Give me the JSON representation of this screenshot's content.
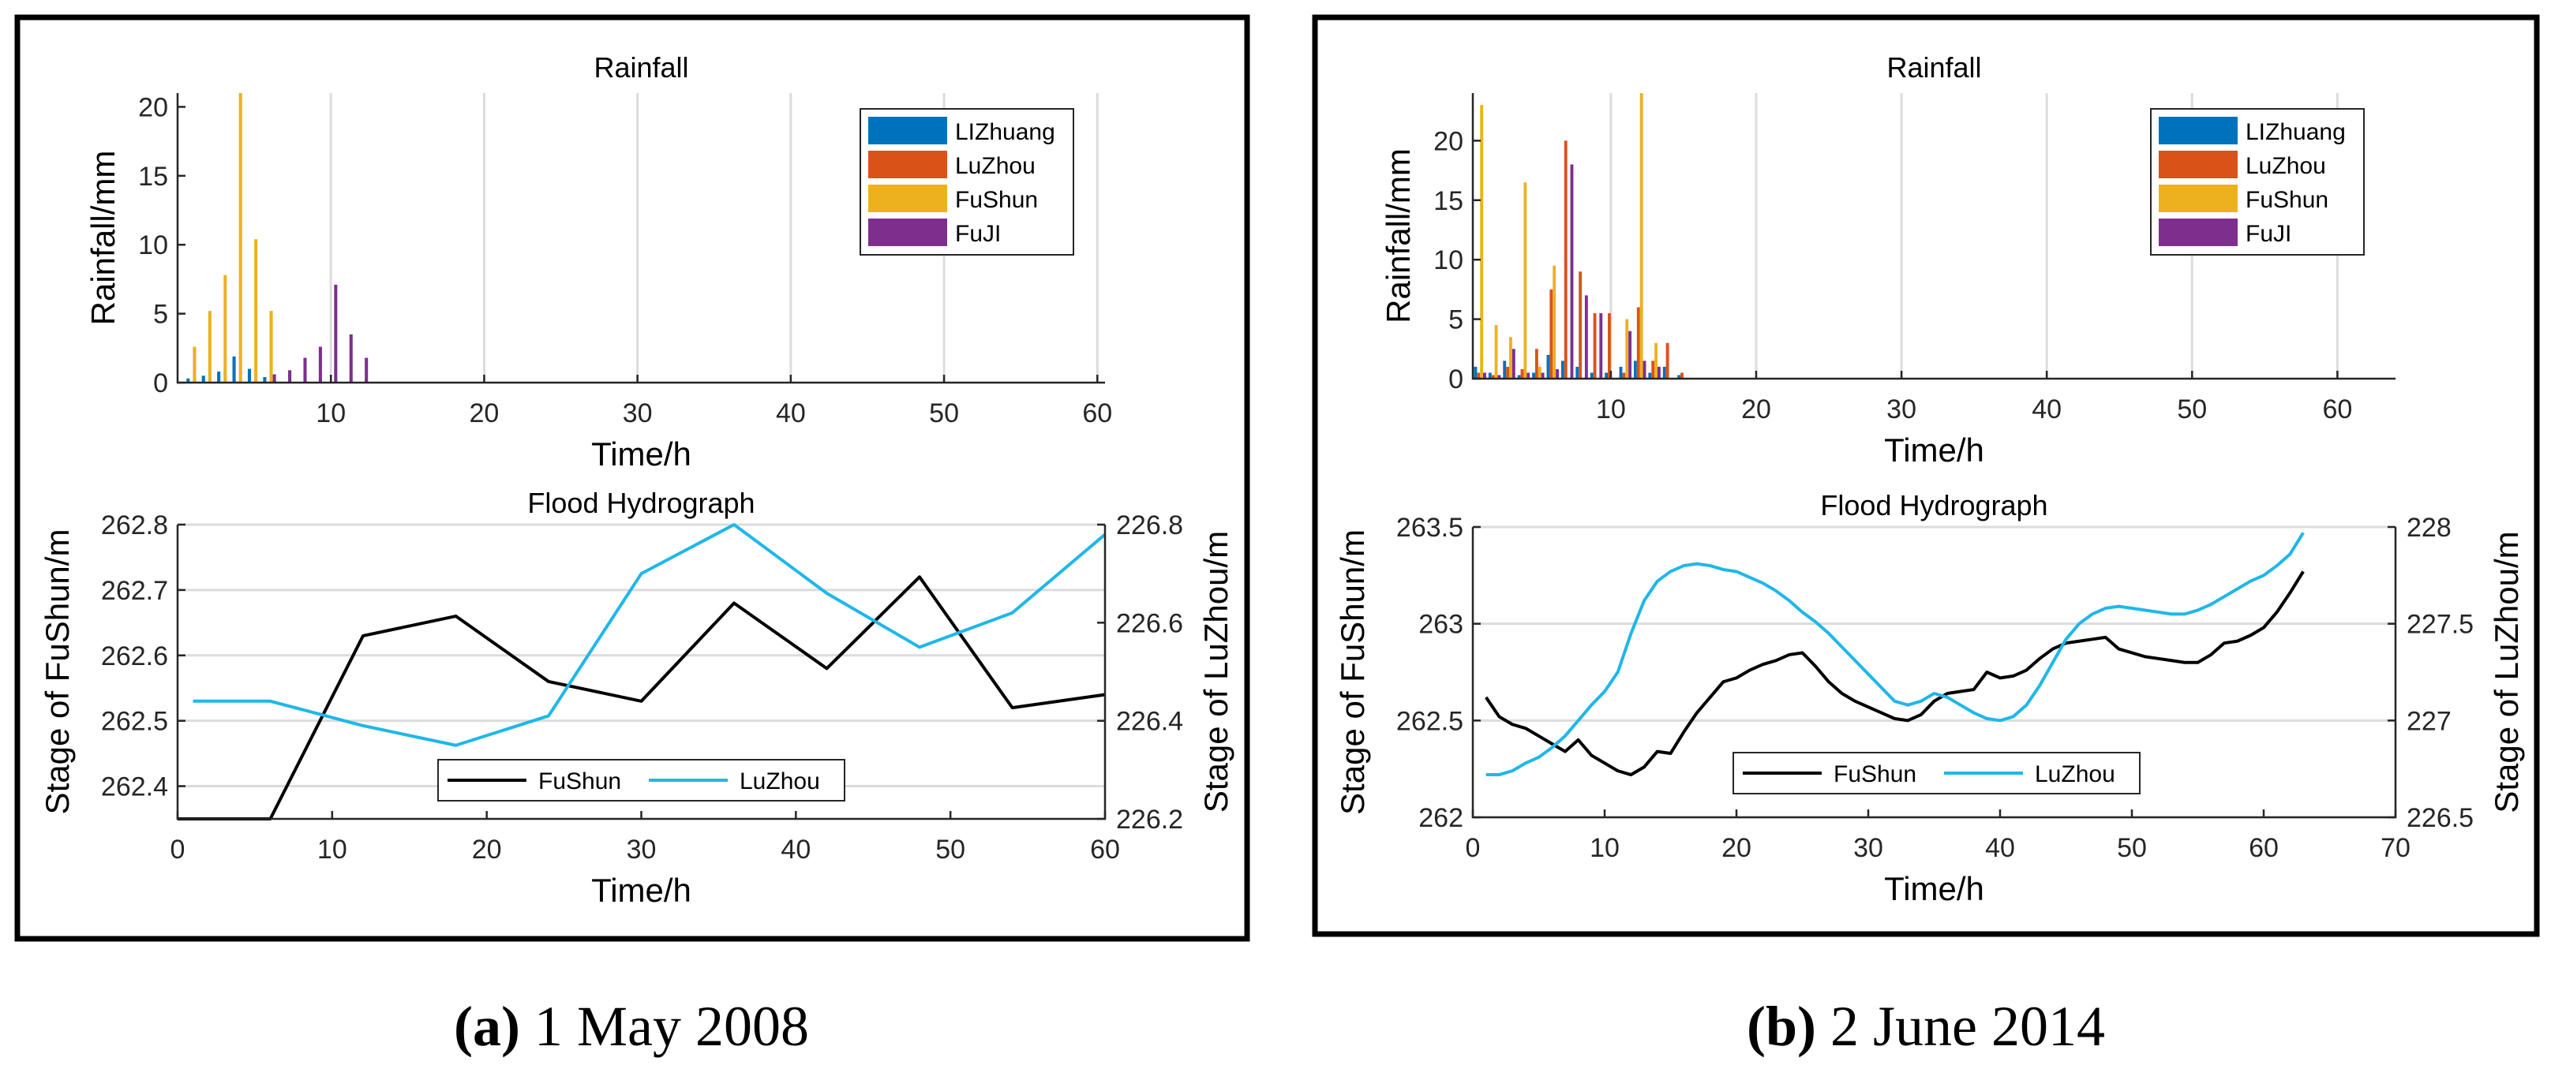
{
  "colors": {
    "LIZhuang": "#0072BD",
    "LuZhou": "#D95319",
    "FuShun": "#EDB120",
    "FuJI": "#7E2F8E",
    "hydro_fushun": "#000000",
    "hydro_luzhou": "#1FB7EA",
    "grid": "#dcdcdc",
    "axis": "#262626"
  },
  "panels": [
    {
      "caption_letter": "(a)",
      "caption_text": " 1 May 2008"
    },
    {
      "caption_letter": "(b)",
      "caption_text": " 2 June 2014"
    }
  ],
  "chart_data": [
    {
      "panel": "a",
      "type": "bar",
      "title": "Rainfall",
      "xlabel": "Time/h",
      "ylabel": "Rainfall/mm",
      "xlim": [
        0,
        60.5
      ],
      "ylim": [
        0,
        21
      ],
      "xticks": [
        10,
        20,
        30,
        40,
        50,
        60
      ],
      "yticks": [
        0,
        5,
        10,
        15,
        20
      ],
      "grid": "x",
      "legend_location": "top-right",
      "x": [
        1,
        2,
        3,
        4,
        5,
        6,
        7,
        8,
        9,
        10,
        11,
        12
      ],
      "series": [
        {
          "name": "LIZhuang",
          "values": [
            0.3,
            0.5,
            0.8,
            1.9,
            1.0,
            0.4,
            0,
            0,
            0,
            0,
            0,
            0
          ]
        },
        {
          "name": "LuZhou",
          "values": [
            0,
            0,
            0,
            0,
            0,
            0,
            0,
            0,
            0,
            0,
            0,
            0
          ]
        },
        {
          "name": "FuShun",
          "values": [
            2.6,
            5.2,
            7.8,
            21,
            10.4,
            5.2,
            0,
            0,
            0,
            0,
            0,
            0
          ]
        },
        {
          "name": "FuJI",
          "values": [
            0,
            0,
            0,
            0,
            0,
            0.6,
            0.9,
            1.8,
            2.6,
            7.1,
            3.5,
            1.8
          ]
        }
      ]
    },
    {
      "panel": "a",
      "type": "line",
      "title": "Flood Hydrograph",
      "xlabel": "Time/h",
      "ylabel_left": "Stage of FuShun/m",
      "ylabel_right": "Stage of LuZhou/m",
      "xlim": [
        0,
        60
      ],
      "ylim_left": [
        262.35,
        262.8
      ],
      "ylim_right": [
        226.2,
        226.8
      ],
      "xticks": [
        0,
        10,
        20,
        30,
        40,
        50,
        60
      ],
      "yticks_left": [
        262.4,
        262.5,
        262.6,
        262.7,
        262.8
      ],
      "yticks_right": [
        226.2,
        226.4,
        226.6,
        226.8
      ],
      "grid": "y",
      "legend_location": "bottom-center",
      "series": [
        {
          "name": "FuShun",
          "axis": "left",
          "x": [
            0,
            6,
            12,
            18,
            24,
            30,
            36,
            42,
            48,
            54,
            60
          ],
          "values": [
            262.35,
            262.35,
            262.63,
            262.66,
            262.56,
            262.53,
            262.68,
            262.58,
            262.72,
            262.52,
            262.54
          ]
        },
        {
          "name": "LuZhou",
          "axis": "right",
          "x": [
            1,
            6,
            12,
            18,
            24,
            30,
            36,
            42,
            48,
            54,
            60
          ],
          "values": [
            226.44,
            226.44,
            226.39,
            226.35,
            226.41,
            226.7,
            226.8,
            226.66,
            226.55,
            226.62,
            226.78
          ]
        }
      ]
    },
    {
      "panel": "b",
      "type": "bar",
      "title": "Rainfall",
      "xlabel": "Time/h",
      "ylabel": "Rainfall/mm",
      "xlim": [
        0.5,
        64
      ],
      "ylim": [
        0,
        24
      ],
      "xticks": [
        10,
        20,
        30,
        40,
        50,
        60
      ],
      "yticks": [
        0,
        5,
        10,
        15,
        20
      ],
      "grid": "x",
      "legend_location": "top-right",
      "x": [
        1,
        2,
        3,
        4,
        5,
        6,
        7,
        8,
        9,
        10,
        11,
        12,
        13,
        14,
        15
      ],
      "series": [
        {
          "name": "LIZhuang",
          "values": [
            1.0,
            0.5,
            1.5,
            0.3,
            0.5,
            2.0,
            1.5,
            1.0,
            0.5,
            0.5,
            1.0,
            1.5,
            0.5,
            1.0,
            0.3
          ]
        },
        {
          "name": "LuZhou",
          "values": [
            0.5,
            0.3,
            1.0,
            0.8,
            2.5,
            7.5,
            20,
            9.0,
            5.5,
            5.5,
            0.5,
            6.0,
            1.5,
            3.0,
            0.5
          ]
        },
        {
          "name": "FuShun",
          "values": [
            23,
            4.5,
            3.5,
            16.5,
            1.0,
            9.5,
            0,
            0,
            0,
            0,
            5.0,
            24,
            3.0,
            0,
            0
          ]
        },
        {
          "name": "FuJI",
          "values": [
            0.5,
            0.3,
            2.5,
            0.5,
            0.5,
            0.8,
            18,
            7.0,
            5.5,
            0,
            4.0,
            1.5,
            1.0,
            0,
            0
          ]
        }
      ]
    },
    {
      "panel": "b",
      "type": "line",
      "title": "Flood Hydrograph",
      "xlabel": "Time/h",
      "ylabel_left": "Stage of FuShun/m",
      "ylabel_right": "Stage of LuZhou/m",
      "xlim": [
        0,
        70
      ],
      "ylim_left": [
        262,
        263.5
      ],
      "ylim_right": [
        226.5,
        228
      ],
      "xticks": [
        0,
        10,
        20,
        30,
        40,
        50,
        60,
        70
      ],
      "yticks_left": [
        262,
        262.5,
        263,
        263.5
      ],
      "yticks_right": [
        226.5,
        227,
        227.5,
        228
      ],
      "yticklabels_left": [
        "262",
        "262.5",
        "263",
        "263.5"
      ],
      "yticklabels_right": [
        "226.5",
        "227",
        "227.5",
        "228"
      ],
      "grid": "y",
      "legend_location": "bottom-left",
      "series": [
        {
          "name": "FuShun",
          "axis": "left",
          "x": [
            1,
            2,
            3,
            4,
            5,
            6,
            7,
            8,
            9,
            10,
            11,
            12,
            13,
            14,
            15,
            16,
            17,
            18,
            19,
            20,
            21,
            22,
            23,
            24,
            25,
            26,
            27,
            28,
            29,
            30,
            31,
            32,
            33,
            34,
            35,
            36,
            37,
            38,
            39,
            40,
            41,
            42,
            43,
            44,
            45,
            46,
            47,
            48,
            49,
            50,
            51,
            52,
            53,
            54,
            55,
            56,
            57,
            58,
            59,
            60,
            61,
            62,
            63
          ],
          "values": [
            262.62,
            262.52,
            262.48,
            262.46,
            262.42,
            262.38,
            262.34,
            262.4,
            262.32,
            262.28,
            262.24,
            262.22,
            262.26,
            262.34,
            262.33,
            262.44,
            262.54,
            262.62,
            262.7,
            262.72,
            262.76,
            262.79,
            262.81,
            262.84,
            262.85,
            262.78,
            262.7,
            262.64,
            262.6,
            262.57,
            262.54,
            262.51,
            262.5,
            262.53,
            262.6,
            262.64,
            262.65,
            262.66,
            262.75,
            262.72,
            262.73,
            262.76,
            262.82,
            262.87,
            262.9,
            262.91,
            262.92,
            262.93,
            262.87,
            262.85,
            262.83,
            262.82,
            262.81,
            262.8,
            262.8,
            262.84,
            262.9,
            262.91,
            262.94,
            262.98,
            263.06,
            263.16,
            263.27
          ]
        },
        {
          "name": "LuZhou",
          "axis": "right",
          "x": [
            1,
            2,
            3,
            4,
            5,
            6,
            7,
            8,
            9,
            10,
            11,
            12,
            13,
            14,
            15,
            16,
            17,
            18,
            19,
            20,
            21,
            22,
            23,
            24,
            25,
            26,
            27,
            28,
            29,
            30,
            31,
            32,
            33,
            34,
            35,
            36,
            37,
            38,
            39,
            40,
            41,
            42,
            43,
            44,
            45,
            46,
            47,
            48,
            49,
            50,
            51,
            52,
            53,
            54,
            55,
            56,
            57,
            58,
            59,
            60,
            61,
            62,
            63
          ],
          "values": [
            226.72,
            226.72,
            226.74,
            226.78,
            226.81,
            226.86,
            226.92,
            227.0,
            227.08,
            227.15,
            227.25,
            227.45,
            227.62,
            227.72,
            227.77,
            227.8,
            227.81,
            227.8,
            227.78,
            227.77,
            227.74,
            227.71,
            227.67,
            227.62,
            227.56,
            227.51,
            227.45,
            227.38,
            227.31,
            227.24,
            227.17,
            227.1,
            227.08,
            227.1,
            227.14,
            227.12,
            227.08,
            227.04,
            227.01,
            227.0,
            227.02,
            227.08,
            227.18,
            227.3,
            227.42,
            227.5,
            227.55,
            227.58,
            227.59,
            227.58,
            227.57,
            227.56,
            227.55,
            227.55,
            227.57,
            227.6,
            227.64,
            227.68,
            227.72,
            227.75,
            227.8,
            227.86,
            227.97
          ]
        }
      ]
    }
  ]
}
